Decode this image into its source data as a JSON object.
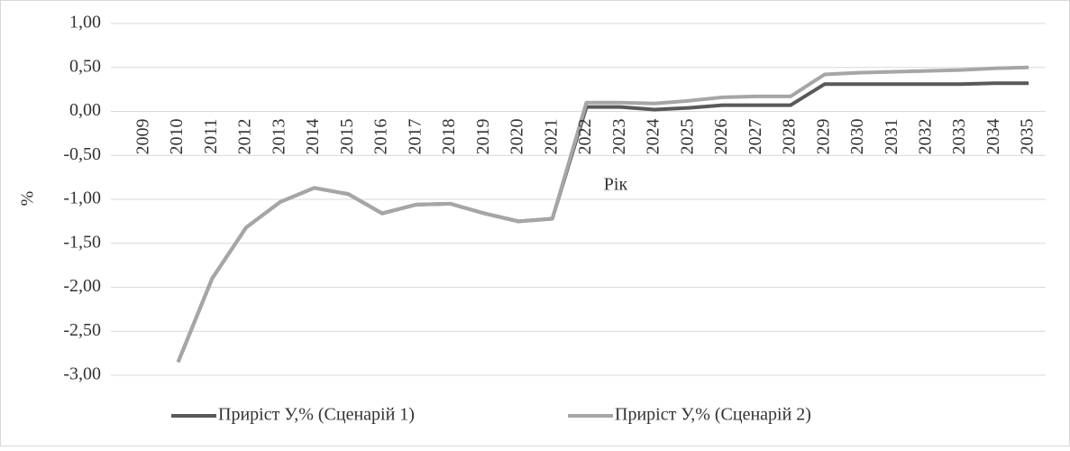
{
  "chart_data": {
    "type": "line",
    "x_label": "Рік",
    "y_label": "%",
    "categories": [
      "2009",
      "2010",
      "2011",
      "2012",
      "2013",
      "2014",
      "2015",
      "2016",
      "2017",
      "2018",
      "2019",
      "2020",
      "2021",
      "2022",
      "2023",
      "2024",
      "2025",
      "2026",
      "2027",
      "2028",
      "2029",
      "2030",
      "2031",
      "2032",
      "2033",
      "2034",
      "2035"
    ],
    "series": [
      {
        "name": "Приріст У,% (Сценарій 1)",
        "color": "#595959",
        "values": [
          null,
          -2.85,
          -1.9,
          -1.32,
          -1.03,
          -0.87,
          -0.94,
          -1.16,
          -1.06,
          -1.05,
          -1.16,
          -1.25,
          -1.22,
          0.05,
          0.05,
          0.02,
          0.04,
          0.07,
          0.07,
          0.07,
          0.31,
          0.31,
          0.31,
          0.31,
          0.31,
          0.32,
          0.32
        ]
      },
      {
        "name": "Приріст У,% (Сценарій 2)",
        "color": "#a6a6a6",
        "values": [
          null,
          -2.85,
          -1.9,
          -1.32,
          -1.03,
          -0.87,
          -0.94,
          -1.16,
          -1.06,
          -1.05,
          -1.16,
          -1.25,
          -1.22,
          0.1,
          0.1,
          0.09,
          0.12,
          0.16,
          0.17,
          0.17,
          0.42,
          0.44,
          0.45,
          0.46,
          0.47,
          0.49,
          0.5
        ]
      }
    ],
    "ylim": [
      -3,
      1
    ],
    "yticks": [
      {
        "value": -3,
        "label": "-3,00"
      },
      {
        "value": -2.5,
        "label": "-2,50"
      },
      {
        "value": -2,
        "label": "-2,00"
      },
      {
        "value": -1.5,
        "label": "-1,50"
      },
      {
        "value": -1,
        "label": "-1,00"
      },
      {
        "value": -0.5,
        "label": "-0,50"
      },
      {
        "value": 0,
        "label": "0,00"
      },
      {
        "value": 0.5,
        "label": "0,50"
      },
      {
        "value": 1,
        "label": "1,00"
      }
    ],
    "grid": true,
    "legend": "bottom"
  }
}
